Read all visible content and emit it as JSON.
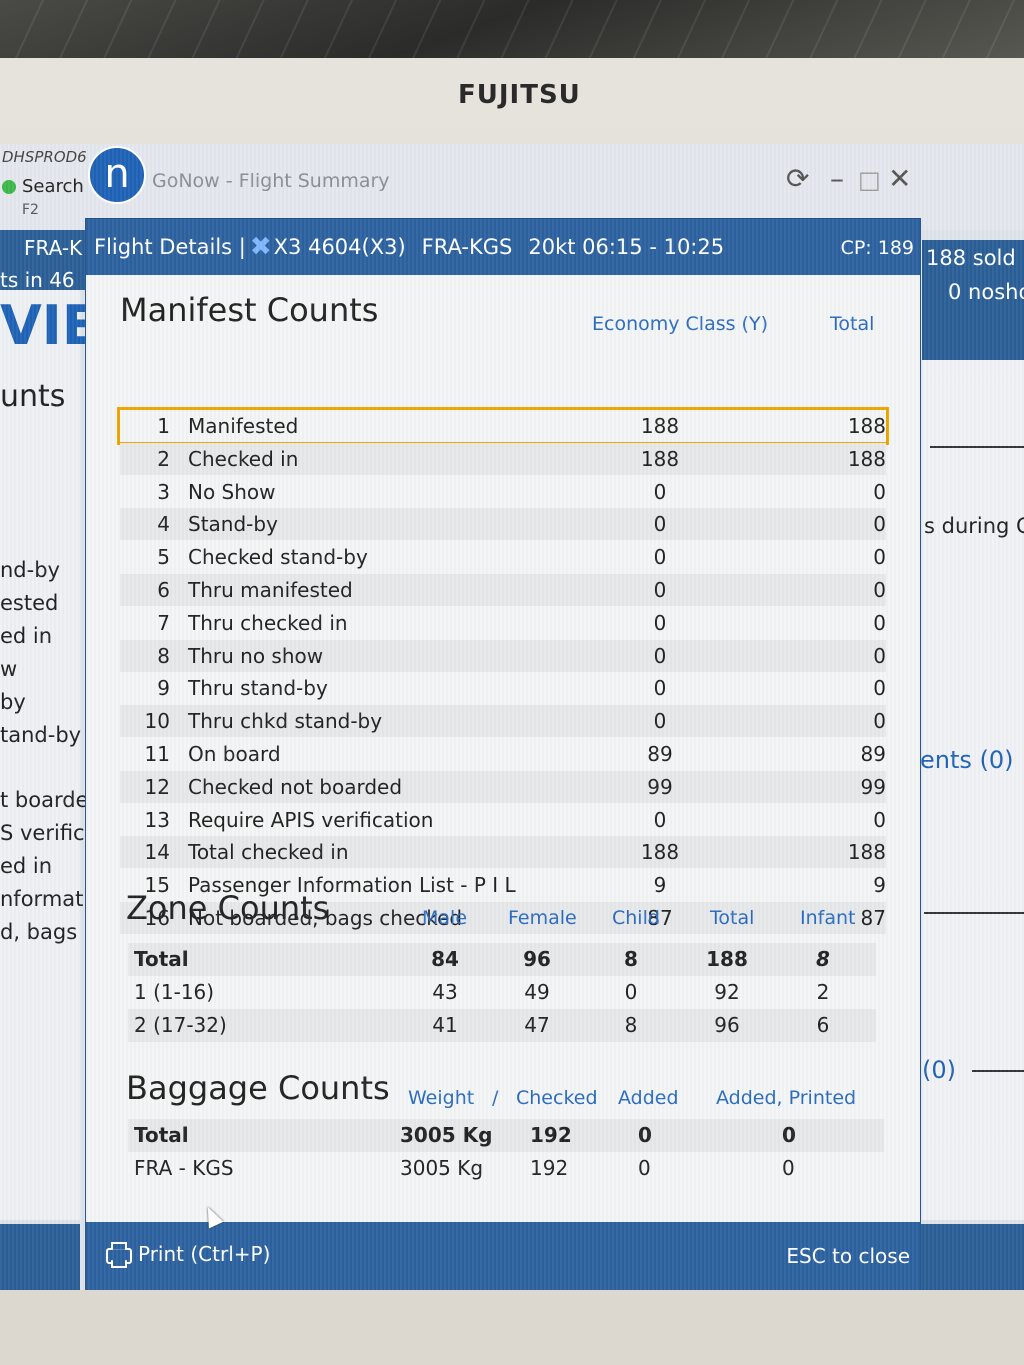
{
  "monitor": {
    "brand": "FUJITSU"
  },
  "background_app": {
    "system_label": "DHSPROD6",
    "search_label": "Search",
    "shortcut": "F2",
    "logo_letter": "n",
    "title": "GoNow - Flight Summary",
    "left_texts": [
      "FRA-K",
      "ts in 46",
      "VIE",
      "unts",
      "nd-by",
      "ested",
      "ed in",
      "w",
      "by",
      "tand-by",
      "t boarde",
      "S verific",
      "ed in",
      "nformat",
      "d, bags c"
    ],
    "right_texts": [
      "188 sold",
      "0 nosho",
      "s during C",
      "ents (0)",
      "(0)"
    ]
  },
  "dialog": {
    "header": {
      "prefix": "Flight Details |",
      "flight": "X3 4604(X3)",
      "route": "FRA-KGS",
      "time": "20kt 06:15 - 10:25",
      "cp": "CP: 189"
    },
    "manifest": {
      "title": "Manifest Counts",
      "col_economy": "Economy Class (Y)",
      "col_total": "Total",
      "rows": [
        {
          "num": "1",
          "label": "Manifested",
          "economy": "188",
          "total": "188"
        },
        {
          "num": "2",
          "label": "Checked in",
          "economy": "188",
          "total": "188"
        },
        {
          "num": "3",
          "label": "No Show",
          "economy": "0",
          "total": "0"
        },
        {
          "num": "4",
          "label": "Stand-by",
          "economy": "0",
          "total": "0"
        },
        {
          "num": "5",
          "label": "Checked stand-by",
          "economy": "0",
          "total": "0"
        },
        {
          "num": "6",
          "label": "Thru manifested",
          "economy": "0",
          "total": "0"
        },
        {
          "num": "7",
          "label": "Thru checked in",
          "economy": "0",
          "total": "0"
        },
        {
          "num": "8",
          "label": "Thru no show",
          "economy": "0",
          "total": "0"
        },
        {
          "num": "9",
          "label": "Thru stand-by",
          "economy": "0",
          "total": "0"
        },
        {
          "num": "10",
          "label": "Thru chkd stand-by",
          "economy": "0",
          "total": "0"
        },
        {
          "num": "11",
          "label": "On board",
          "economy": "89",
          "total": "89"
        },
        {
          "num": "12",
          "label": "Checked not boarded",
          "economy": "99",
          "total": "99"
        },
        {
          "num": "13",
          "label": "Require APIS verification",
          "economy": "0",
          "total": "0"
        },
        {
          "num": "14",
          "label": "Total checked in",
          "economy": "188",
          "total": "188"
        },
        {
          "num": "15",
          "label": "Passenger Information List - P I L",
          "economy": "9",
          "total": "9"
        },
        {
          "num": "16",
          "label": "Not boarded, bags checked",
          "economy": "87",
          "total": "87"
        }
      ]
    },
    "zone": {
      "title": "Zone Counts",
      "cols": [
        "Male",
        "Female",
        "Child",
        "Total",
        "Infant"
      ],
      "rows": [
        {
          "label": "Total",
          "male": "84",
          "female": "96",
          "child": "8",
          "total": "188",
          "infant": "8"
        },
        {
          "label": "1 (1-16)",
          "male": "43",
          "female": "49",
          "child": "0",
          "total": "92",
          "infant": "2"
        },
        {
          "label": "2 (17-32)",
          "male": "41",
          "female": "47",
          "child": "8",
          "total": "96",
          "infant": "6"
        }
      ]
    },
    "baggage": {
      "title": "Baggage Counts",
      "col_weight": "Weight",
      "col_sep": "/",
      "col_checked": "Checked",
      "col_added": "Added",
      "col_added_printed": "Added, Printed",
      "rows": [
        {
          "label": "Total",
          "weight": "3005 Kg",
          "checked": "192",
          "added": "0",
          "added_printed": "0"
        },
        {
          "label": "FRA - KGS",
          "weight": "3005 Kg",
          "checked": "192",
          "added": "0",
          "added_printed": "0"
        }
      ]
    },
    "footer": {
      "print": "Print (Ctrl+P)",
      "esc": "ESC to close"
    }
  }
}
